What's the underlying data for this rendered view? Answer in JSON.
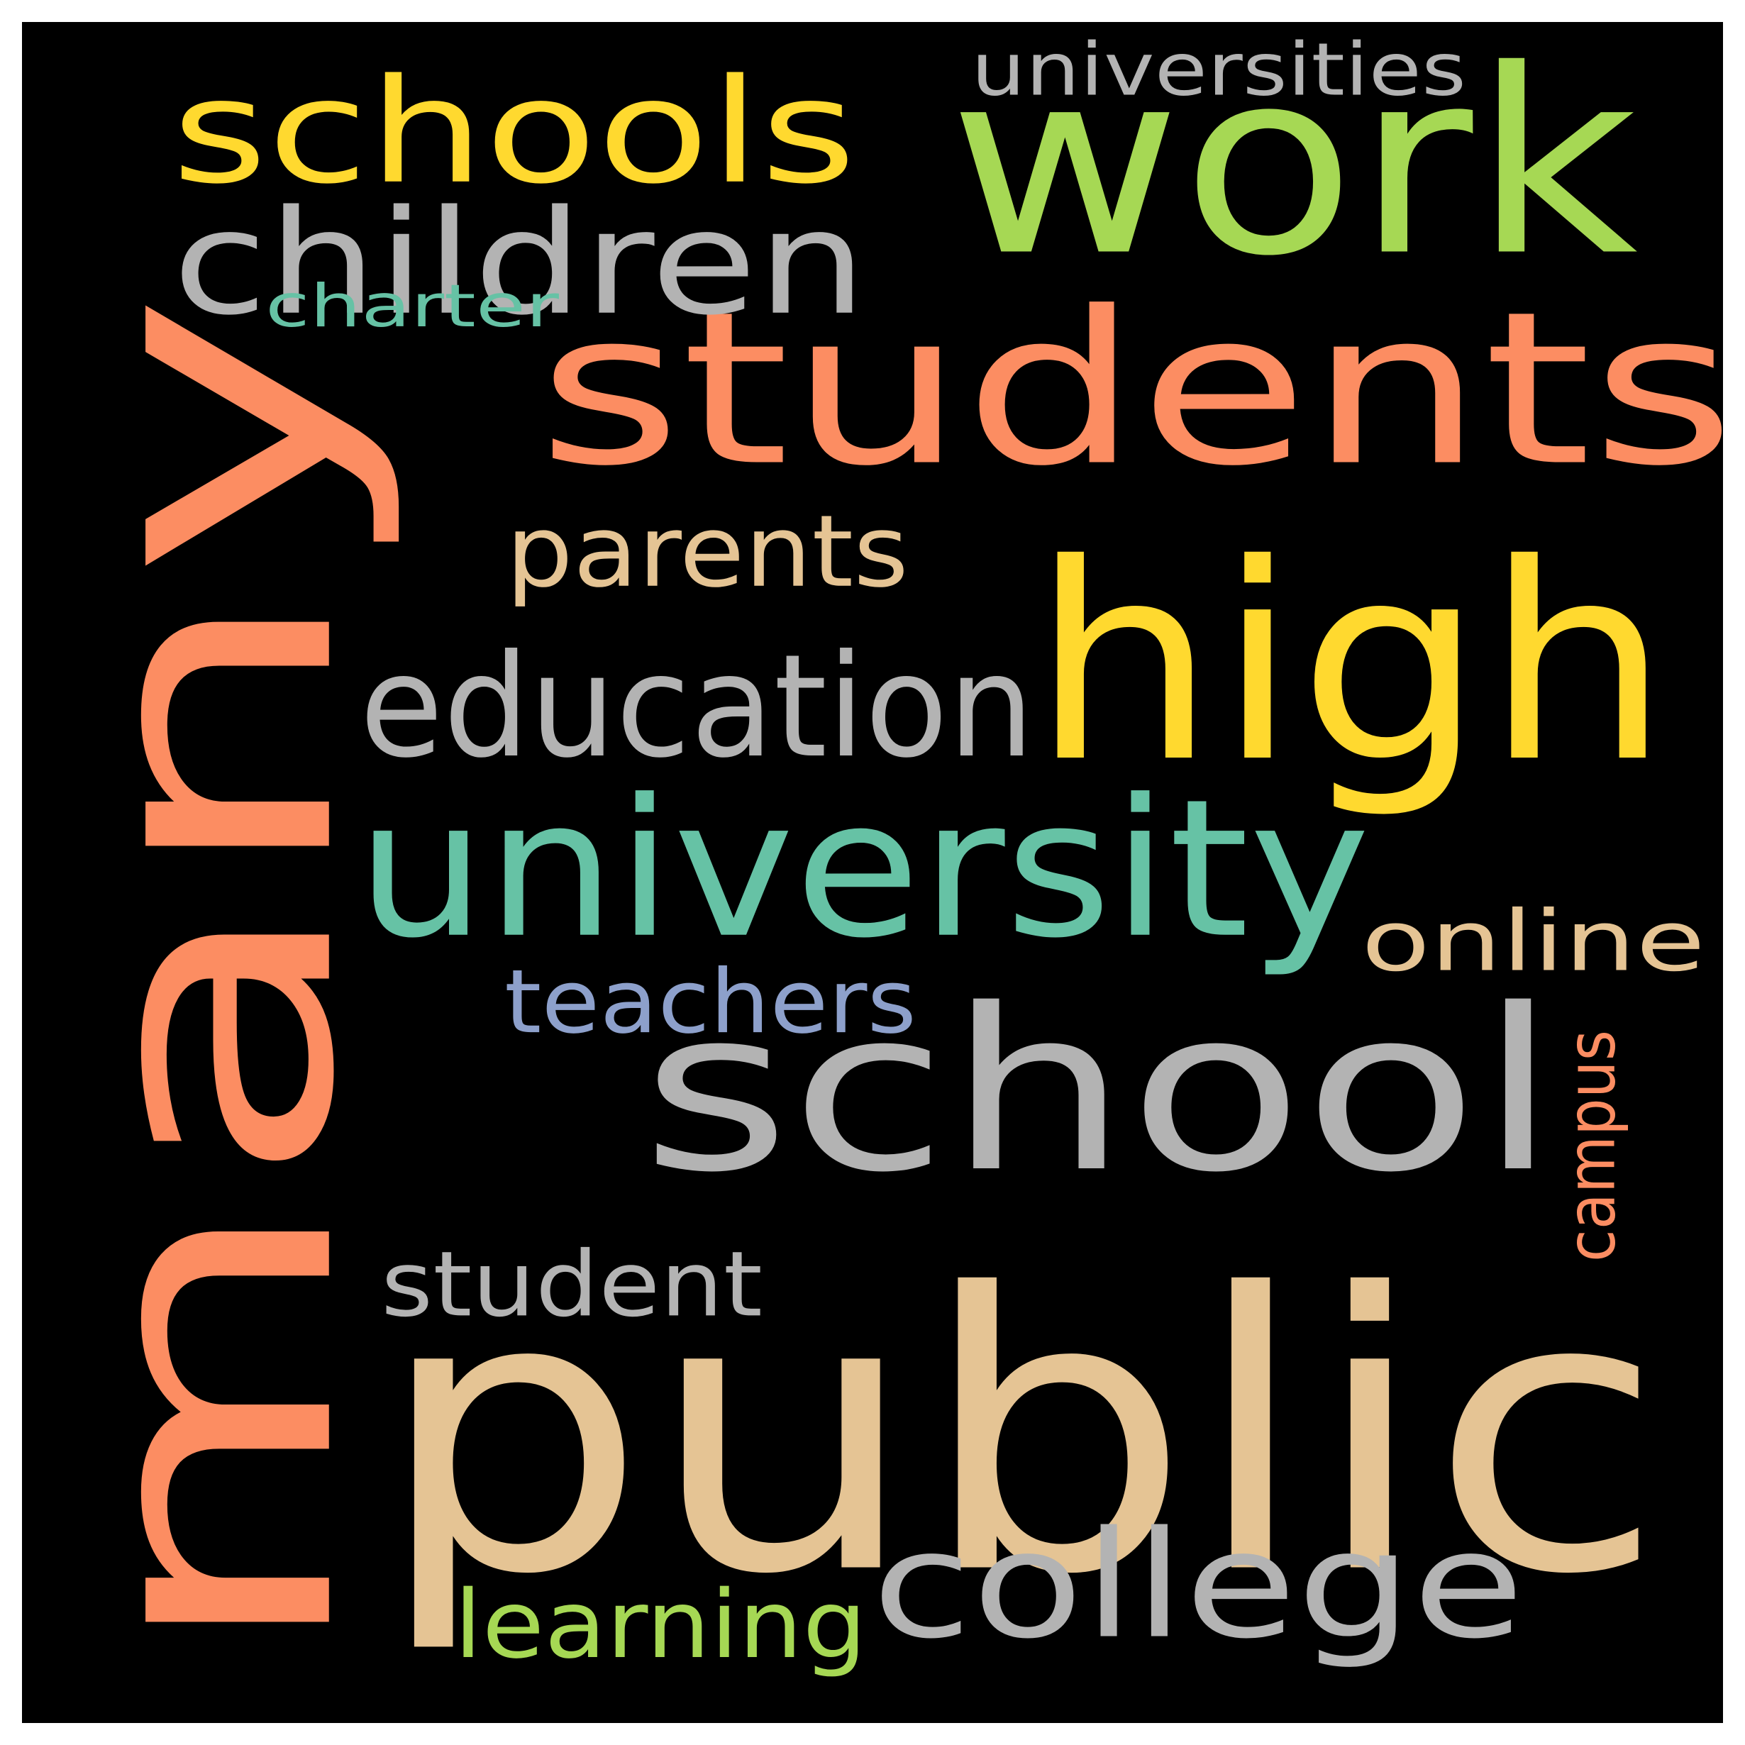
{
  "background_color": "#000000",
  "frame_color": "#ffffff",
  "words": [
    {
      "id": "many",
      "text": "many",
      "color": "#fc8d62",
      "orientation": "vertical"
    },
    {
      "id": "public",
      "text": "public",
      "color": "#e5c494",
      "orientation": "horizontal"
    },
    {
      "id": "work",
      "text": "work",
      "color": "#a6d854",
      "orientation": "horizontal"
    },
    {
      "id": "students",
      "text": "students",
      "color": "#fc8d62",
      "orientation": "horizontal"
    },
    {
      "id": "high",
      "text": "high",
      "color": "#ffd92f",
      "orientation": "horizontal"
    },
    {
      "id": "school",
      "text": "school",
      "color": "#b3b3b3",
      "orientation": "horizontal"
    },
    {
      "id": "university",
      "text": "university",
      "color": "#66c2a5",
      "orientation": "horizontal"
    },
    {
      "id": "schools",
      "text": "schools",
      "color": "#ffd92f",
      "orientation": "horizontal"
    },
    {
      "id": "children",
      "text": "children",
      "color": "#b3b3b3",
      "orientation": "horizontal"
    },
    {
      "id": "education",
      "text": "education",
      "color": "#b3b3b3",
      "orientation": "horizontal"
    },
    {
      "id": "college",
      "text": "college",
      "color": "#b3b3b3",
      "orientation": "horizontal"
    },
    {
      "id": "parents",
      "text": "parents",
      "color": "#e5c494",
      "orientation": "horizontal"
    },
    {
      "id": "online",
      "text": "online",
      "color": "#e5c494",
      "orientation": "horizontal"
    },
    {
      "id": "student",
      "text": "student",
      "color": "#b3b3b3",
      "orientation": "horizontal"
    },
    {
      "id": "teachers",
      "text": "teachers",
      "color": "#8da0cb",
      "orientation": "horizontal"
    },
    {
      "id": "learning",
      "text": "learning",
      "color": "#a6d854",
      "orientation": "horizontal"
    },
    {
      "id": "universities",
      "text": "universities",
      "color": "#b3b3b3",
      "orientation": "horizontal"
    },
    {
      "id": "charter",
      "text": "charter",
      "color": "#66c2a5",
      "orientation": "horizontal"
    },
    {
      "id": "campus",
      "text": "campus",
      "color": "#fc8d62",
      "orientation": "vertical"
    }
  ]
}
